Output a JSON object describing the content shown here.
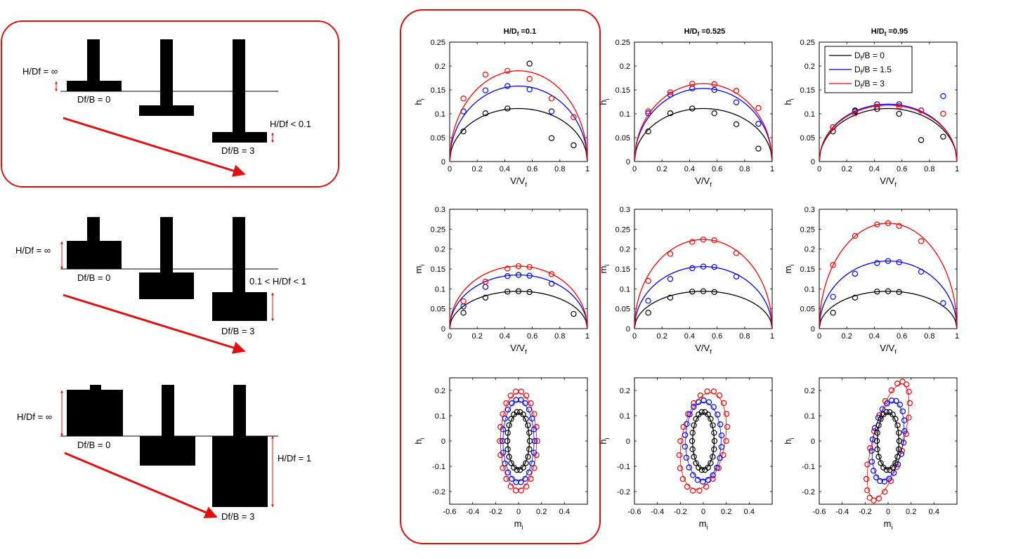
{
  "colors": {
    "highlight": "#e01010",
    "black": "#000000",
    "blue": "#0000ff",
    "red": "#ff0000",
    "foundation": "#000000"
  },
  "schematics": [
    {
      "hdf_label": "H/Df = ∞",
      "df0_label": "Df/B = 0",
      "df3_label": "Df/B = 3",
      "ratio_label": "H/Df < 0.1"
    },
    {
      "hdf_label": "H/Df = ∞",
      "df0_label": "Df/B = 0",
      "df3_label": "Df/B = 3",
      "ratio_label": "0.1 < H/Df < 1"
    },
    {
      "hdf_label": "H/Df = ∞",
      "df0_label": "Df/B = 0",
      "df3_label": "Df/B = 3",
      "ratio_label": "H/Df = 1"
    }
  ],
  "column_titles": [
    {
      "main": "H/D",
      "sub": "f",
      "rest": " =0.1"
    },
    {
      "main": "H/D",
      "sub": "f",
      "rest": " =0.525"
    },
    {
      "main": "H/D",
      "sub": "f",
      "rest": " =0.95"
    }
  ],
  "legend": [
    {
      "pre": "D",
      "sub": "f",
      "post": "/B = 0",
      "color": "black"
    },
    {
      "pre": "D",
      "sub": "f",
      "post": "/B = 1.5",
      "color": "blue"
    },
    {
      "pre": "D",
      "sub": "f",
      "post": "/B = 3",
      "color": "red"
    }
  ],
  "chart_data": [
    {
      "id": "h_r1",
      "type": "line+scatter",
      "panel": "row1-col1",
      "xlabel": "V/V_f",
      "ylabel": "h_i",
      "xlim": [
        0,
        1
      ],
      "ylim": [
        0,
        0.25
      ],
      "xticks": [
        0,
        0.2,
        0.4,
        0.6,
        0.8,
        1
      ],
      "yticks": [
        0,
        0.05,
        0.1,
        0.15,
        0.2,
        0.25
      ],
      "curve_peaks": {
        "black": 0.111,
        "blue": 0.158,
        "red": 0.19
      },
      "points": {
        "x": [
          0.1,
          0.26,
          0.42,
          0.58,
          0.74,
          0.9
        ],
        "black": [
          0.063,
          0.101,
          0.111,
          0.205,
          0.049,
          0.034
        ],
        "blue": [
          0.105,
          0.149,
          0.158,
          0.151,
          0.105,
          null
        ],
        "red": [
          0.132,
          0.182,
          0.19,
          0.173,
          0.132,
          0.093
        ]
      }
    },
    {
      "id": "h_r2",
      "type": "line+scatter",
      "panel": "row1-col2",
      "xlabel": "V/V_f",
      "ylabel": "h_i",
      "xlim": [
        0,
        1
      ],
      "ylim": [
        0,
        0.25
      ],
      "xticks": [
        0,
        0.2,
        0.4,
        0.6,
        0.8,
        1
      ],
      "yticks": [
        0,
        0.05,
        0.1,
        0.15,
        0.2,
        0.25
      ],
      "curve_peaks": {
        "black": 0.111,
        "blue": 0.153,
        "red": 0.163
      },
      "points": {
        "x": [
          0.1,
          0.26,
          0.42,
          0.58,
          0.74,
          0.9
        ],
        "black": [
          0.063,
          0.101,
          0.111,
          0.101,
          0.078,
          0.027
        ],
        "blue": [
          0.101,
          0.14,
          0.153,
          0.15,
          0.124,
          0.079
        ],
        "red": [
          0.105,
          0.145,
          0.163,
          0.162,
          0.148,
          0.112
        ]
      }
    },
    {
      "id": "h_r3",
      "type": "line+scatter",
      "panel": "row1-col3",
      "xlabel": "V/V_f",
      "ylabel": "h_i",
      "xlim": [
        0,
        1
      ],
      "ylim": [
        0,
        0.25
      ],
      "xticks": [
        0,
        0.2,
        0.4,
        0.6,
        0.8,
        1
      ],
      "yticks": [
        0,
        0.05,
        0.1,
        0.15,
        0.2,
        0.25
      ],
      "curve_peaks": {
        "black": 0.111,
        "blue": 0.12,
        "red": 0.118
      },
      "points": {
        "x": [
          0.1,
          0.26,
          0.42,
          0.58,
          0.74,
          0.9
        ],
        "black": [
          0.063,
          0.105,
          0.11,
          0.1,
          0.045,
          0.052
        ],
        "blue": [
          0.072,
          0.107,
          0.12,
          0.12,
          0.107,
          0.137
        ],
        "red": [
          0.072,
          0.101,
          0.115,
          0.116,
          0.107,
          0.1
        ]
      }
    },
    {
      "id": "m_r1",
      "type": "line+scatter",
      "panel": "row2-col1",
      "xlabel": "V/V_f",
      "ylabel": "m_i",
      "xlim": [
        0,
        1
      ],
      "ylim": [
        0,
        0.3
      ],
      "xticks": [
        0,
        0.2,
        0.4,
        0.6,
        0.8,
        1
      ],
      "yticks": [
        0,
        0.05,
        0.1,
        0.15,
        0.2,
        0.25,
        0.3
      ],
      "curve_peaks": {
        "black": 0.094,
        "blue": 0.135,
        "red": 0.157
      },
      "points": {
        "x": [
          0.1,
          0.26,
          0.42,
          0.5,
          0.58,
          0.74,
          0.9
        ],
        "black": [
          0.04,
          0.078,
          0.093,
          0.094,
          0.092,
          null,
          0.037
        ],
        "blue": [
          0.056,
          0.105,
          0.132,
          0.135,
          0.133,
          0.113,
          null
        ],
        "red": [
          0.069,
          0.118,
          0.151,
          0.157,
          0.155,
          0.137,
          null
        ]
      }
    },
    {
      "id": "m_r2",
      "type": "line+scatter",
      "panel": "row2-col2",
      "xlabel": "V/V_f",
      "ylabel": "m_i",
      "xlim": [
        0,
        1
      ],
      "ylim": [
        0,
        0.3
      ],
      "xticks": [
        0,
        0.2,
        0.4,
        0.6,
        0.8,
        1
      ],
      "yticks": [
        0,
        0.05,
        0.1,
        0.15,
        0.2,
        0.25,
        0.3
      ],
      "curve_peaks": {
        "black": 0.094,
        "blue": 0.156,
        "red": 0.224
      },
      "points": {
        "x": [
          0.1,
          0.26,
          0.42,
          0.5,
          0.58,
          0.74
        ],
        "black": [
          0.04,
          0.078,
          0.093,
          0.094,
          0.092,
          null
        ],
        "blue": [
          0.07,
          0.125,
          0.152,
          0.156,
          0.155,
          0.131
        ],
        "red": [
          0.12,
          0.188,
          0.218,
          0.224,
          0.222,
          0.19
        ]
      }
    },
    {
      "id": "m_r3",
      "type": "line+scatter",
      "panel": "row2-col3",
      "xlabel": "V/V_f",
      "ylabel": "m_i",
      "xlim": [
        0,
        1
      ],
      "ylim": [
        0,
        0.3
      ],
      "xticks": [
        0,
        0.2,
        0.4,
        0.6,
        0.8,
        1
      ],
      "yticks": [
        0,
        0.05,
        0.1,
        0.15,
        0.2,
        0.25,
        0.3
      ],
      "curve_peaks": {
        "black": 0.094,
        "blue": 0.17,
        "red": 0.265
      },
      "points": {
        "x": [
          0.1,
          0.26,
          0.42,
          0.5,
          0.58,
          0.74,
          0.9
        ],
        "black": [
          0.04,
          0.078,
          0.093,
          0.094,
          0.092,
          null,
          null
        ],
        "blue": [
          0.08,
          0.138,
          0.165,
          0.17,
          0.167,
          0.143,
          0.064
        ],
        "red": [
          0.16,
          0.233,
          0.262,
          0.265,
          0.258,
          0.22,
          null
        ]
      }
    },
    {
      "id": "mh_r1",
      "type": "scatter+ellipse",
      "panel": "row3-col1",
      "xlabel": "m_i",
      "ylabel": "h_i",
      "xlim": [
        -0.6,
        0.6
      ],
      "ylim": [
        -0.25,
        0.25
      ],
      "xticks": [
        -0.6,
        -0.4,
        -0.2,
        0,
        0.2,
        0.4
      ],
      "yticks": [
        -0.2,
        -0.1,
        0,
        0.1,
        0.2
      ],
      "ellipses": {
        "black": {
          "a": 0.094,
          "b": 0.111,
          "phi": 0
        },
        "blue": {
          "a": 0.135,
          "b": 0.158,
          "phi": 0
        },
        "red": {
          "a": 0.157,
          "b": 0.19,
          "phi": 0
        }
      }
    },
    {
      "id": "mh_r2",
      "type": "scatter+ellipse",
      "panel": "row3-col2",
      "xlabel": "m_i",
      "ylabel": "h_i",
      "xlim": [
        -0.6,
        0.6
      ],
      "ylim": [
        -0.25,
        0.25
      ],
      "xticks": [
        -0.6,
        -0.4,
        -0.2,
        0,
        0.2,
        0.4
      ],
      "yticks": [
        -0.2,
        -0.1,
        0,
        0.1,
        0.2
      ],
      "ellipses": {
        "black": {
          "a": 0.094,
          "b": 0.111,
          "phi": 0
        },
        "blue": {
          "a": 0.156,
          "b": 0.153,
          "phi": 0.7
        },
        "red": {
          "a": 0.224,
          "b": 0.163,
          "phi": 0.7
        }
      }
    },
    {
      "id": "mh_r3",
      "type": "scatter+ellipse",
      "panel": "row3-col3",
      "xlabel": "m_i",
      "ylabel": "h_i",
      "xlim": [
        -0.6,
        0.6
      ],
      "ylim": [
        -0.25,
        0.25
      ],
      "xticks": [
        -0.6,
        -0.4,
        -0.2,
        0,
        0.2,
        0.4
      ],
      "yticks": [
        -0.2,
        -0.1,
        0,
        0.1,
        0.2
      ],
      "ellipses": {
        "black": {
          "a": 0.094,
          "b": 0.111,
          "phi": 0
        },
        "blue": {
          "a": 0.17,
          "b": 0.12,
          "phi": 0.95
        },
        "red": {
          "a": 0.265,
          "b": 0.118,
          "phi": 0.95
        }
      }
    }
  ]
}
